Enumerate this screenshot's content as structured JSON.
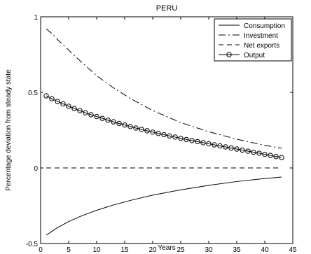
{
  "chart_data": {
    "type": "line",
    "title": "PERU",
    "xlabel": "Years",
    "ylabel": "Percentage deviation from steady state",
    "xlim": [
      0,
      45
    ],
    "ylim": [
      -0.5,
      1
    ],
    "xticks": [
      0,
      5,
      10,
      15,
      20,
      25,
      30,
      35,
      40,
      45
    ],
    "yticks": [
      -0.5,
      0,
      0.5,
      1
    ],
    "ytick_labels": [
      "-0.5",
      "0",
      "0.5",
      "1"
    ],
    "grid": false,
    "legend_position": "top-right",
    "zero_line": true,
    "series": [
      {
        "name": "Consumption",
        "style": "solid",
        "x": [
          1,
          2,
          3,
          5,
          7,
          10,
          13,
          16,
          20,
          25,
          30,
          35,
          40,
          43
        ],
        "y": [
          -0.445,
          -0.42,
          -0.395,
          -0.355,
          -0.322,
          -0.28,
          -0.245,
          -0.215,
          -0.18,
          -0.145,
          -0.115,
          -0.09,
          -0.07,
          -0.06
        ]
      },
      {
        "name": "Investment",
        "style": "dashdot",
        "x": [
          1,
          2,
          3,
          5,
          7,
          10,
          13,
          16,
          20,
          25,
          30,
          35,
          40,
          43
        ],
        "y": [
          0.92,
          0.89,
          0.85,
          0.78,
          0.71,
          0.61,
          0.53,
          0.46,
          0.38,
          0.3,
          0.24,
          0.19,
          0.15,
          0.13
        ]
      },
      {
        "name": "Net exports",
        "style": "dashed",
        "x": [
          1,
          43
        ],
        "y": [
          0,
          0
        ]
      },
      {
        "name": "Output",
        "style": "solid-circle",
        "x": [
          1,
          2,
          3,
          4,
          5,
          6,
          7,
          8,
          9,
          10,
          11,
          12,
          13,
          14,
          15,
          16,
          17,
          18,
          19,
          20,
          21,
          22,
          23,
          24,
          25,
          26,
          27,
          28,
          29,
          30,
          31,
          32,
          33,
          34,
          35,
          36,
          37,
          38,
          39,
          40,
          41,
          42,
          43
        ],
        "y": [
          0.477,
          0.458,
          0.44,
          0.424,
          0.408,
          0.393,
          0.379,
          0.365,
          0.352,
          0.34,
          0.328,
          0.316,
          0.305,
          0.294,
          0.284,
          0.274,
          0.264,
          0.255,
          0.246,
          0.237,
          0.228,
          0.22,
          0.212,
          0.204,
          0.196,
          0.188,
          0.181,
          0.174,
          0.167,
          0.16,
          0.153,
          0.146,
          0.139,
          0.132,
          0.125,
          0.118,
          0.111,
          0.104,
          0.097,
          0.09,
          0.083,
          0.076,
          0.069
        ]
      }
    ]
  }
}
